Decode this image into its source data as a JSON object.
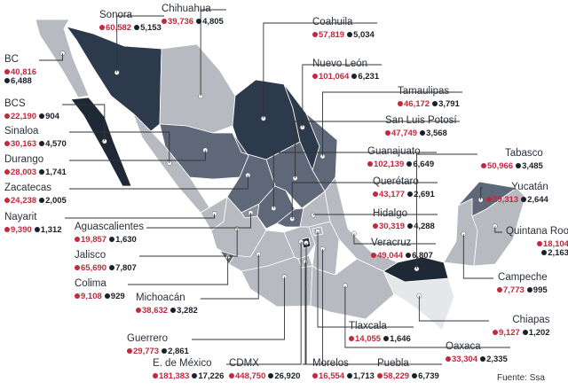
{
  "states": [
    {
      "id": "bc",
      "name": "BC",
      "cases": "40,816",
      "deaths": "6,488",
      "shade": "#b7bac0"
    },
    {
      "id": "bcs",
      "name": "BCS",
      "cases": "22,190",
      "deaths": "904",
      "shade": "#1f2936"
    },
    {
      "id": "sonora",
      "name": "Sonora",
      "cases": "60,582",
      "deaths": "5,153",
      "shade": "#2d3a4c"
    },
    {
      "id": "chihuahua",
      "name": "Chihuahua",
      "cases": "39,736",
      "deaths": "4,805",
      "shade": "#b7bac0"
    },
    {
      "id": "coahuila",
      "name": "Coahuila",
      "cases": "57,819",
      "deaths": "5,034",
      "shade": "#2d3a4c"
    },
    {
      "id": "nuevoleon",
      "name": "Nuevo León",
      "cases": "101,064",
      "deaths": "6,231",
      "shade": "#2d3a4c"
    },
    {
      "id": "tamaulipas",
      "name": "Tamaulipas",
      "cases": "46,172",
      "deaths": "3,791",
      "shade": "#5f6878"
    },
    {
      "id": "slp",
      "name": "San Luis Potosí",
      "cases": "47,749",
      "deaths": "3,568",
      "shade": "#5f6878"
    },
    {
      "id": "sinaloa",
      "name": "Sinaloa",
      "cases": "30,163",
      "deaths": "4,570",
      "shade": "#b7bac0"
    },
    {
      "id": "durango",
      "name": "Durango",
      "cases": "28,003",
      "deaths": "1,741",
      "shade": "#5f6878"
    },
    {
      "id": "zacatecas",
      "name": "Zacatecas",
      "cases": "24,238",
      "deaths": "2,005",
      "shade": "#5f6878"
    },
    {
      "id": "nayarit",
      "name": "Nayarit",
      "cases": "9,390",
      "deaths": "1,312",
      "shade": "#b7bac0"
    },
    {
      "id": "aguascalientes",
      "name": "Aguascalientes",
      "cases": "19,857",
      "deaths": "1,630",
      "shade": "#8a909c"
    },
    {
      "id": "jalisco",
      "name": "Jalisco",
      "cases": "65,690",
      "deaths": "7,807",
      "shade": "#b7bac0"
    },
    {
      "id": "colima",
      "name": "Colima",
      "cases": "9,108",
      "deaths": "929",
      "shade": "#5f6878"
    },
    {
      "id": "michoacan",
      "name": "Michoacán",
      "cases": "38,632",
      "deaths": "3,282",
      "shade": "#b7bac0"
    },
    {
      "id": "guanajuato",
      "name": "Guanajuato",
      "cases": "102,139",
      "deaths": "6,649",
      "shade": "#5f6878"
    },
    {
      "id": "queretaro",
      "name": "Querétaro",
      "cases": "43,177",
      "deaths": "2,691",
      "shade": "#5f6878"
    },
    {
      "id": "hidalgo",
      "name": "Hidalgo",
      "cases": "30,319",
      "deaths": "4,288",
      "shade": "#b7bac0"
    },
    {
      "id": "veracruz",
      "name": "Veracruz",
      "cases": "49,044",
      "deaths": "6,807",
      "shade": "#b7bac0"
    },
    {
      "id": "guerrero",
      "name": "Guerrero",
      "cases": "29,773",
      "deaths": "2,861",
      "shade": "#b7bac0"
    },
    {
      "id": "edomex",
      "name": "E. de México",
      "cases": "181,383",
      "deaths": "17,226",
      "shade": "#b7bac0"
    },
    {
      "id": "cdmx",
      "name": "CDMX",
      "cases": "448,750",
      "deaths": "26,920",
      "shade": "#1f2936"
    },
    {
      "id": "morelos",
      "name": "Morelos",
      "cases": "16,554",
      "deaths": "1,713",
      "shade": "#b7bac0"
    },
    {
      "id": "puebla",
      "name": "Puebla",
      "cases": "58,229",
      "deaths": "6,739",
      "shade": "#b7bac0"
    },
    {
      "id": "tlaxcala",
      "name": "Tlaxcala",
      "cases": "14,055",
      "deaths": "1,646",
      "shade": "#b7bac0"
    },
    {
      "id": "oaxaca",
      "name": "Oaxaca",
      "cases": "33,304",
      "deaths": "2,335",
      "shade": "#b7bac0"
    },
    {
      "id": "chiapas",
      "name": "Chiapas",
      "cases": "9,127",
      "deaths": "1,202",
      "shade": "#e6e7ea"
    },
    {
      "id": "tabasco",
      "name": "Tabasco",
      "cases": "50,966",
      "deaths": "3,485",
      "shade": "#1f2936"
    },
    {
      "id": "campeche",
      "name": "Campeche",
      "cases": "7,773",
      "deaths": "995",
      "shade": "#b7bac0"
    },
    {
      "id": "yucatan",
      "name": "Yucatán",
      "cases": "29,313",
      "deaths": "2,644",
      "shade": "#5f6878"
    },
    {
      "id": "qroo",
      "name": "Quintana Roo",
      "cases": "18,104",
      "deaths": "2,163",
      "shade": "#b7bac0"
    }
  ],
  "legend": {
    "cases_color": "#c3283d",
    "deaths_color": "#1b1f28"
  },
  "source": "Fuente: Ssa"
}
